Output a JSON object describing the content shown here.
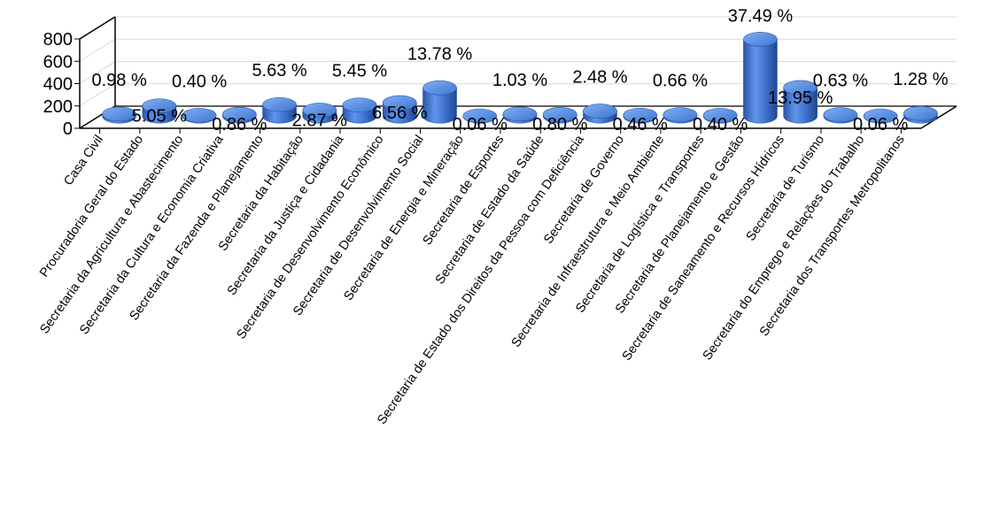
{
  "chart_data": {
    "type": "bar",
    "categories": [
      "Casa Civil",
      "Procuradoria Geral do Estado",
      "Secretaria da Agricultura e Abastecimento",
      "Secretaria da Cultura e Economia Criativa",
      "Secretaria da Fazenda e Planejamento",
      "Secretaria da Habitação",
      "Secretaria da Justiça e Cidadania",
      "Secretaria de Desenvolvimento Econômico",
      "Secretaria de Desenvolvimento Social",
      "Secretaria de Energia e Mineração",
      "Secretaria de Esportes",
      "Secretaria de Estado da Saúde",
      "Secretaria de Estado dos Direitos da Pessoa com Deficiência",
      "Secretaria de Governo",
      "Secretaria de Infraestrutura e Meio Ambiente",
      "Secretaria de Logística e Transportes",
      "Secretaria de Planejamento e Gestão",
      "Secretaria de Saneamento e Recursos Hídricos",
      "Secretaria de Turismo",
      "Secretaria do Emprego e Relações do Trabalho",
      "Secretaria dos Transportes Metropolitanos"
    ],
    "values": [
      18,
      92,
      7,
      16,
      103,
      53,
      100,
      120,
      253,
      1,
      19,
      15,
      45,
      8,
      12,
      7,
      688,
      256,
      12,
      1,
      24
    ],
    "data_labels": [
      "0.98 %",
      "5.05 %",
      "0.40 %",
      "0.86 %",
      "5.63 %",
      "2.87 %",
      "5.45 %",
      "6.56 %",
      "13.78 %",
      "0.06 %",
      "1.03 %",
      "0.80 %",
      "2.48 %",
      "0.46 %",
      "0.66 %",
      "0.40 %",
      "37.49 %",
      "13.95 %",
      "0.63 %",
      "0.06 %",
      "1.28 %"
    ],
    "title": "",
    "xlabel": "",
    "ylabel": "",
    "ylim": [
      0,
      800
    ],
    "yticks": [
      "0",
      "200",
      "400",
      "600",
      "800"
    ],
    "grid": true,
    "legend": "none",
    "style": "3d-cylinder",
    "bar_color": "#3b6fd0"
  }
}
